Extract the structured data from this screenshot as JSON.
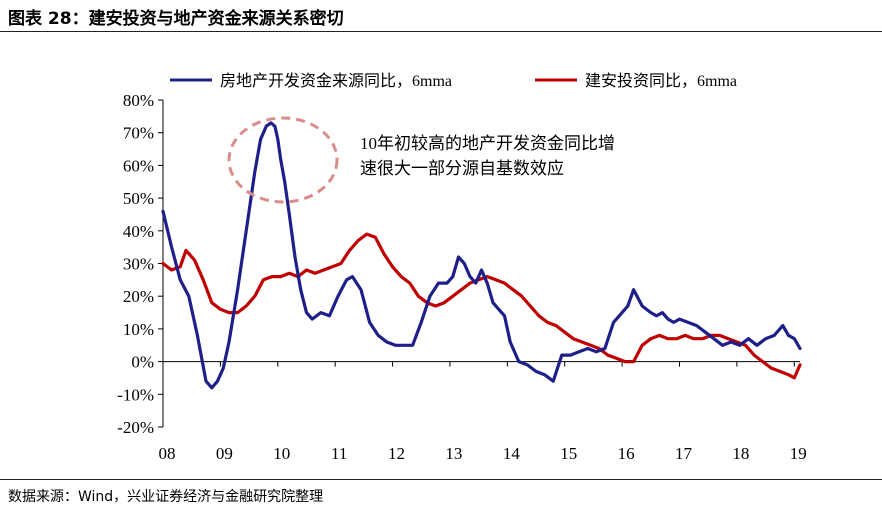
{
  "figure": {
    "title": "图表 28：建安投资与地产资金来源关系密切",
    "source": "数据来源：Wind，兴业证券经济与金融研究院整理"
  },
  "chart_data": {
    "type": "line",
    "x_tick_labels": [
      "08",
      "09",
      "10",
      "11",
      "12",
      "13",
      "14",
      "15",
      "16",
      "17",
      "18",
      "19"
    ],
    "y_tick_labels": [
      "80%",
      "70%",
      "60%",
      "50%",
      "40%",
      "30%",
      "20%",
      "10%",
      "0%",
      "-10%",
      "-20%"
    ],
    "ylim": [
      -20,
      80
    ],
    "xlim": [
      2008.0,
      2019.1
    ],
    "legend_position": "top",
    "annotation": {
      "lines": [
        "10年初较高的地产开发资金同比增",
        "速很大一部分源自基数效应"
      ],
      "circle_color": "#d98c8c"
    },
    "series": [
      {
        "name": "房地产开发资金来源同比，6mma",
        "color": "#1f1f8a",
        "x": [
          2008.0,
          2008.15,
          2008.3,
          2008.45,
          2008.6,
          2008.75,
          2008.85,
          2008.95,
          2009.05,
          2009.15,
          2009.3,
          2009.45,
          2009.6,
          2009.7,
          2009.8,
          2009.88,
          2009.95,
          2010.0,
          2010.05,
          2010.12,
          2010.2,
          2010.3,
          2010.4,
          2010.5,
          2010.6,
          2010.75,
          2010.9,
          2011.05,
          2011.2,
          2011.3,
          2011.45,
          2011.6,
          2011.75,
          2011.9,
          2012.05,
          2012.2,
          2012.35,
          2012.5,
          2012.65,
          2012.8,
          2012.95,
          2013.05,
          2013.15,
          2013.25,
          2013.35,
          2013.45,
          2013.55,
          2013.65,
          2013.75,
          2013.85,
          2013.95,
          2014.05,
          2014.2,
          2014.35,
          2014.5,
          2014.65,
          2014.8,
          2014.95,
          2015.1,
          2015.25,
          2015.4,
          2015.55,
          2015.7,
          2015.85,
          2016.0,
          2016.1,
          2016.2,
          2016.35,
          2016.5,
          2016.6,
          2016.7,
          2016.8,
          2016.9,
          2017.0,
          2017.15,
          2017.3,
          2017.45,
          2017.6,
          2017.75,
          2017.9,
          2018.05,
          2018.2,
          2018.35,
          2018.5,
          2018.65,
          2018.8,
          2018.9,
          2019.0,
          2019.1
        ],
        "y": [
          46,
          35,
          25,
          20,
          8,
          -6,
          -8,
          -6,
          -2,
          6,
          22,
          40,
          58,
          68,
          72,
          73,
          72,
          68,
          62,
          55,
          45,
          32,
          22,
          15,
          13,
          15,
          14,
          20,
          25,
          26,
          22,
          12,
          8,
          6,
          5,
          5,
          5,
          12,
          20,
          24,
          24,
          26,
          32,
          30,
          26,
          24,
          28,
          24,
          18,
          16,
          14,
          6,
          0,
          -1,
          -3,
          -4,
          -6,
          2,
          2,
          3,
          4,
          3,
          4,
          12,
          15,
          17,
          22,
          17,
          15,
          14,
          15,
          13,
          12,
          13,
          12,
          11,
          9,
          7,
          5,
          6,
          5,
          7,
          5,
          7,
          8,
          11,
          8,
          7,
          4
        ]
      },
      {
        "name": "建安投资同比，6mma",
        "color": "#c00000",
        "x": [
          2008.0,
          2008.15,
          2008.3,
          2008.4,
          2008.55,
          2008.7,
          2008.85,
          2009.0,
          2009.15,
          2009.3,
          2009.45,
          2009.6,
          2009.75,
          2009.9,
          2010.05,
          2010.2,
          2010.35,
          2010.5,
          2010.65,
          2010.8,
          2010.95,
          2011.1,
          2011.25,
          2011.4,
          2011.55,
          2011.7,
          2011.85,
          2012.0,
          2012.15,
          2012.3,
          2012.45,
          2012.6,
          2012.75,
          2012.9,
          2013.05,
          2013.2,
          2013.35,
          2013.5,
          2013.65,
          2013.8,
          2013.95,
          2014.1,
          2014.25,
          2014.4,
          2014.55,
          2014.7,
          2014.85,
          2015.0,
          2015.15,
          2015.3,
          2015.45,
          2015.6,
          2015.75,
          2015.9,
          2016.05,
          2016.2,
          2016.35,
          2016.5,
          2016.65,
          2016.8,
          2016.95,
          2017.1,
          2017.25,
          2017.4,
          2017.55,
          2017.7,
          2017.85,
          2018.0,
          2018.15,
          2018.3,
          2018.45,
          2018.6,
          2018.75,
          2018.9,
          2019.0,
          2019.1
        ],
        "y": [
          30,
          28,
          29,
          34,
          31,
          25,
          18,
          16,
          15,
          15,
          17,
          20,
          25,
          26,
          26,
          27,
          26,
          28,
          27,
          28,
          29,
          30,
          34,
          37,
          39,
          38,
          33,
          29,
          26,
          24,
          20,
          18,
          17,
          18,
          20,
          22,
          24,
          25,
          26,
          25,
          24,
          22,
          20,
          17,
          14,
          12,
          11,
          9,
          7,
          6,
          5,
          4,
          2,
          1,
          0,
          0,
          5,
          7,
          8,
          7,
          7,
          8,
          7,
          7,
          8,
          8,
          7,
          6,
          5,
          2,
          0,
          -2,
          -3,
          -4,
          -5,
          -1
        ]
      }
    ]
  }
}
